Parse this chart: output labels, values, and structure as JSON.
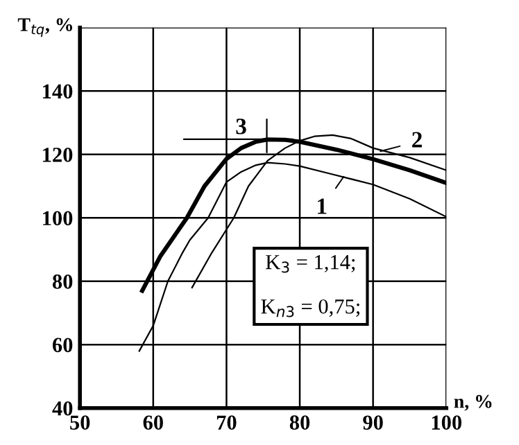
{
  "chart_data": {
    "type": "line",
    "xlabel": "n, %",
    "ylabel": "T$_{tq}$, %",
    "xlim": [
      50,
      100
    ],
    "ylim": [
      40,
      160
    ],
    "xticks": [
      50,
      60,
      70,
      80,
      90,
      100
    ],
    "yticks": [
      40,
      60,
      80,
      100,
      120,
      140,
      {
        "value": 160,
        "label": null
      }
    ],
    "grid": true,
    "marker": "none",
    "line_style": "solid",
    "series": [
      {
        "color": "#000000",
        "x": [
          58.1,
          60,
          62,
          64,
          65,
          67.5,
          70,
          72,
          74,
          75.6,
          78,
          80,
          84,
          90,
          95,
          100
        ],
        "values": [
          58,
          66,
          80,
          89,
          93,
          100,
          111.3,
          114.5,
          116.6,
          117.4,
          117,
          116.3,
          114,
          110.5,
          106,
          100.3
        ]
      },
      {
        "color": "#000000",
        "x": [
          65.3,
          68,
          71,
          73,
          75.6,
          78,
          80,
          82,
          84.5,
          87,
          90,
          95,
          100
        ],
        "values": [
          78,
          89,
          100,
          110,
          118,
          122,
          124.3,
          125.7,
          126.1,
          125,
          122,
          119,
          115
        ]
      },
      {
        "color": "#000000",
        "x": [
          58.5,
          61,
          64.6,
          67,
          70,
          72,
          74,
          75.6,
          78,
          80,
          85,
          90,
          95,
          100
        ],
        "values": [
          77,
          88,
          100,
          110,
          118.6,
          122,
          124,
          124.7,
          124.6,
          124,
          121.5,
          118.5,
          115,
          111
        ]
      },
      {
        "color": "#000000",
        "x": [
          64.2,
          79
        ],
        "values": [
          124.8,
          124.8
        ]
      },
      {
        "color": "#000000",
        "x": [
          75.5,
          75.5
        ],
        "values": [
          120.7,
          131
        ]
      }
    ],
    "annotations": [
      {
        "text": "1",
        "x": 86,
        "y": 113
      },
      {
        "text": "2",
        "x": 91,
        "y": 121
      },
      "3",
      "K$_{3}$ = 1,14;\n\nK$_{n3}$ = 0,75;"
    ]
  }
}
